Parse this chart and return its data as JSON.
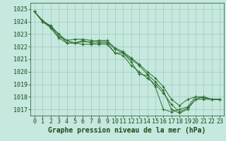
{
  "series": [
    [
      1024.8,
      1024.0,
      1023.7,
      1023.0,
      1022.5,
      1022.3,
      1022.5,
      1022.3,
      1022.3,
      1022.3,
      1021.5,
      1021.5,
      1020.8,
      1019.8,
      1019.7,
      1018.8,
      1017.0,
      1016.8,
      1017.0,
      1017.2,
      1018.0,
      1018.0,
      1017.8,
      1017.8
    ],
    [
      1024.8,
      1024.0,
      1023.6,
      1022.8,
      1022.5,
      1022.6,
      1022.6,
      1022.5,
      1022.4,
      1022.4,
      1021.8,
      1021.5,
      1021.0,
      1020.5,
      1019.8,
      1019.2,
      1018.5,
      1017.0,
      1016.7,
      1017.0,
      1017.8,
      1018.0,
      1017.8,
      1017.8
    ],
    [
      1024.8,
      1024.1,
      1023.6,
      1023.0,
      1022.3,
      1022.3,
      1022.4,
      1022.4,
      1022.5,
      1022.5,
      1021.9,
      1021.6,
      1021.1,
      1020.6,
      1020.0,
      1019.5,
      1018.8,
      1017.8,
      1017.3,
      1017.8,
      1018.0,
      1017.9,
      1017.8,
      1017.8
    ],
    [
      1024.8,
      1024.0,
      1023.5,
      1022.7,
      1022.3,
      1022.3,
      1022.2,
      1022.2,
      1022.2,
      1022.2,
      1021.5,
      1021.3,
      1020.5,
      1020.0,
      1019.5,
      1019.0,
      1018.3,
      1017.4,
      1016.8,
      1017.1,
      1017.8,
      1017.8,
      1017.8,
      1017.8
    ]
  ],
  "x": [
    0,
    1,
    2,
    3,
    4,
    5,
    6,
    7,
    8,
    9,
    10,
    11,
    12,
    13,
    14,
    15,
    16,
    17,
    18,
    19,
    20,
    21,
    22,
    23
  ],
  "ylim": [
    1016.5,
    1025.5
  ],
  "yticks": [
    1017,
    1018,
    1019,
    1020,
    1021,
    1022,
    1023,
    1024,
    1025
  ],
  "xticks": [
    0,
    1,
    2,
    3,
    4,
    5,
    6,
    7,
    8,
    9,
    10,
    11,
    12,
    13,
    14,
    15,
    16,
    17,
    18,
    19,
    20,
    21,
    22,
    23
  ],
  "line_color": "#2d6e2d",
  "marker_color": "#2d6e2d",
  "bg_color": "#c5e8df",
  "grid_color": "#a0c8bc",
  "xlabel": "Graphe pression niveau de la mer (hPa)",
  "xlabel_color": "#1a4a1a",
  "tick_color": "#1a4a1a",
  "tick_fontsize": 6.0,
  "xlabel_fontsize": 7.0
}
